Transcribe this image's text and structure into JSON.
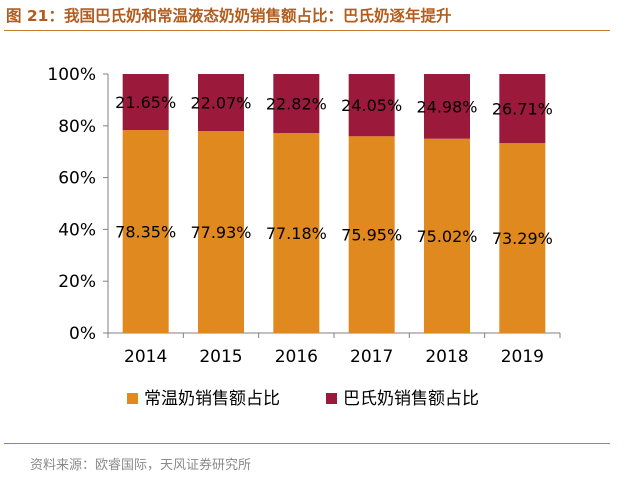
{
  "header": {
    "title": "图 21：我国巴氏奶和常温液态奶奶销售额占比：巴氏奶逐年提升"
  },
  "footer": {
    "source": "资料来源：欧睿国际，天风证券研究所"
  },
  "colors": {
    "bottom_series": "#e0891f",
    "top_series": "#9b1a3b",
    "accent_rule": "#c97a30",
    "title": "#b25c1e"
  },
  "chart_data": {
    "type": "bar",
    "stacked": true,
    "percent": true,
    "categories": [
      "2014",
      "2015",
      "2016",
      "2017",
      "2018",
      "2019"
    ],
    "series": [
      {
        "name": "常温奶销售额占比",
        "values": [
          78.35,
          77.93,
          77.18,
          75.95,
          75.02,
          73.29
        ],
        "labels": [
          "78.35%",
          "77.93%",
          "77.18%",
          "75.95%",
          "75.02%",
          "73.29%"
        ]
      },
      {
        "name": "巴氏奶销售额占比",
        "values": [
          21.65,
          22.07,
          22.82,
          24.05,
          24.98,
          26.71
        ],
        "labels": [
          "21.65%",
          "22.07%",
          "22.82%",
          "24.05%",
          "24.98%",
          "26.71%"
        ]
      }
    ],
    "ylim": [
      0,
      100
    ],
    "yticks": [
      0,
      20,
      40,
      60,
      80,
      100
    ],
    "ytick_labels": [
      "0%",
      "20%",
      "40%",
      "60%",
      "80%",
      "100%"
    ],
    "grid": false,
    "legend_position": "bottom"
  }
}
